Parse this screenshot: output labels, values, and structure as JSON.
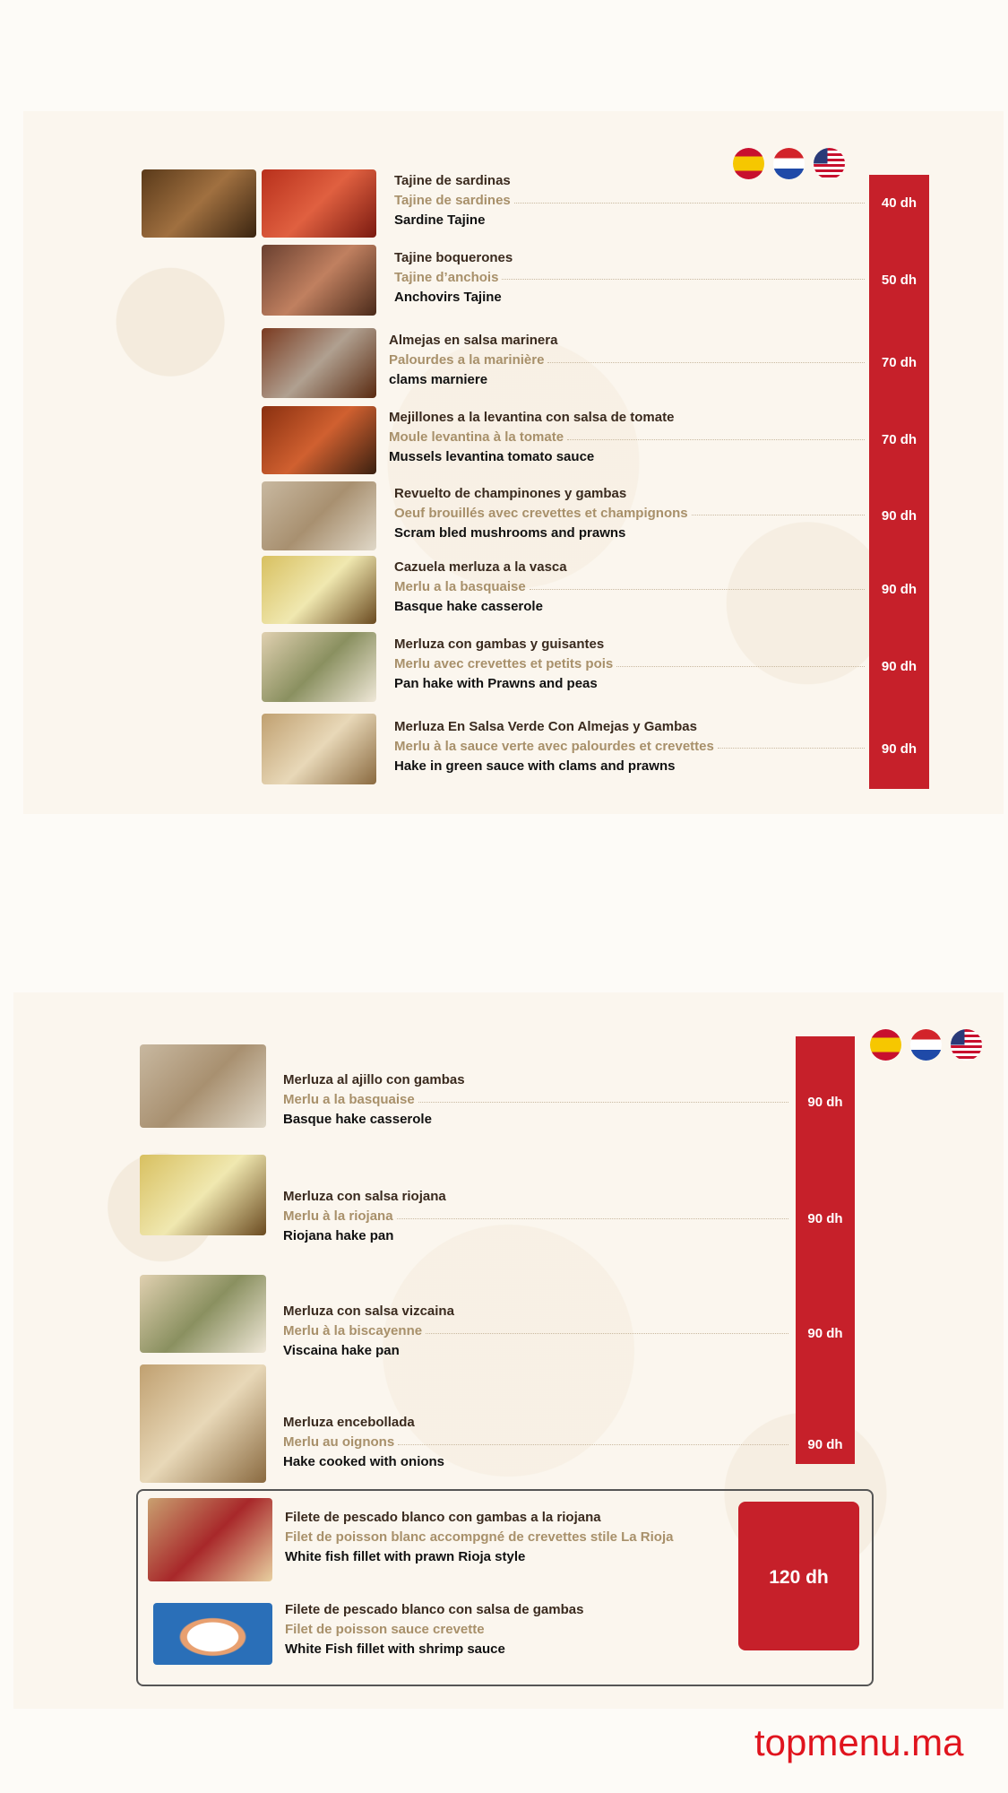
{
  "colors": {
    "price_bar": "#c6202a",
    "brand": "#e0141e",
    "french_text": "#a8906a"
  },
  "flags": [
    "spain-flag-icon",
    "netherlands-flag-icon",
    "usa-flag-icon"
  ],
  "page1": {
    "items": [
      {
        "es": "Tajine de sardinas",
        "fr": "Tajine de sardines",
        "en": "Sardine Tajine",
        "price": "40 dh"
      },
      {
        "es": "Tajine boquerones",
        "fr": "Tajine d’anchois",
        "en": "Anchovirs Tajine",
        "price": "50 dh"
      },
      {
        "es": "Almejas en salsa marinera",
        "fr": "Palourdes a la marinière",
        "en": "clams marniere",
        "price": "70 dh"
      },
      {
        "es": "Mejillones a la levantina con salsa de tomate",
        "fr": "Moule levantina à la tomate",
        "en": "Mussels levantina tomato sauce",
        "price": "70 dh"
      },
      {
        "es": "Revuelto de champinones y gambas",
        "fr": "Oeuf brouillés avec crevettes et champignons",
        "en": "Scram bled mushrooms and prawns",
        "price": "90 dh"
      },
      {
        "es": "Cazuela merluza a la vasca",
        "fr": "Merlu a la basquaise",
        "en": "Basque hake casserole",
        "price": "90 dh"
      },
      {
        "es": "Merluza con gambas y guisantes",
        "fr": "Merlu avec crevettes et petits pois",
        "en": "Pan hake with Prawns and peas",
        "price": "90 dh"
      },
      {
        "es": "Merluza En Salsa Verde Con Almejas y Gambas",
        "fr": "Merlu à la sauce verte avec palourdes et crevettes",
        "en": "Hake in green sauce with clams and prawns",
        "price": "90 dh"
      }
    ]
  },
  "page2": {
    "items": [
      {
        "es": "Merluza al ajillo con gambas",
        "fr": "Merlu a la basquaise",
        "en": "Basque hake casserole",
        "price": "90 dh"
      },
      {
        "es": "Merluza con salsa riojana",
        "fr": "Merlu à la riojana",
        "en": "Riojana hake pan",
        "price": "90 dh"
      },
      {
        "es": "Merluza con salsa vizcaina",
        "fr": "Merlu à la biscayenne",
        "en": "Viscaina hake pan",
        "price": "90 dh"
      },
      {
        "es": "Merluza encebollada",
        "fr": "Merlu au oignons",
        "en": "Hake cooked with onions",
        "price": "90 dh"
      }
    ],
    "combo": {
      "price": "120 dh",
      "items": [
        {
          "es": "Filete de pescado blanco con gambas a la riojana",
          "fr": "Filet de poisson blanc accompgné de crevettes stile La Rioja",
          "en": "White fish fillet with prawn Rioja style"
        },
        {
          "es": "Filete de pescado blanco con salsa de gambas",
          "fr": "Filet de poisson sauce crevette",
          "en": "White Fish fillet with shrimp sauce"
        }
      ]
    }
  },
  "brand": "topmenu.ma"
}
